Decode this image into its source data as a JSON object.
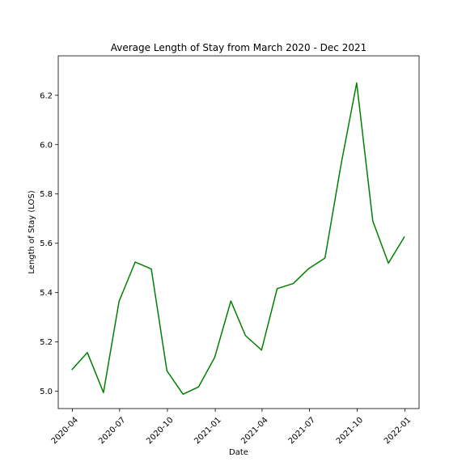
{
  "chart_data": {
    "type": "line",
    "title": "Average Length of Stay from March 2020 - Dec 2021",
    "xlabel": "Date",
    "ylabel": "Length of Stay (LOS)",
    "xlim": [
      "2020-03-05",
      "2022-01-28"
    ],
    "ylim": [
      4.93,
      6.36
    ],
    "grid": false,
    "x_ticks": [
      "2020-04",
      "2020-07",
      "2020-10",
      "2021-01",
      "2021-04",
      "2021-07",
      "2021-10",
      "2022-01"
    ],
    "y_ticks": [
      5.0,
      5.2,
      5.4,
      5.6,
      5.8,
      6.0,
      6.2
    ],
    "series": [
      {
        "color": "#008000",
        "x": [
          "2020-03-31",
          "2020-04-30",
          "2020-05-31",
          "2020-06-30",
          "2020-07-31",
          "2020-08-31",
          "2020-09-30",
          "2020-10-31",
          "2020-11-30",
          "2020-12-31",
          "2021-01-31",
          "2021-02-28",
          "2021-03-31",
          "2021-04-30",
          "2021-05-31",
          "2021-06-30",
          "2021-07-31",
          "2021-08-31",
          "2021-09-30",
          "2021-10-31",
          "2021-11-30",
          "2021-12-31"
        ],
        "values": [
          5.087,
          5.157,
          4.995,
          5.365,
          5.524,
          5.496,
          5.083,
          4.988,
          5.018,
          5.138,
          5.366,
          5.226,
          5.167,
          5.416,
          5.437,
          5.498,
          5.54,
          5.92,
          6.25,
          5.69,
          5.519,
          5.627
        ]
      }
    ]
  }
}
